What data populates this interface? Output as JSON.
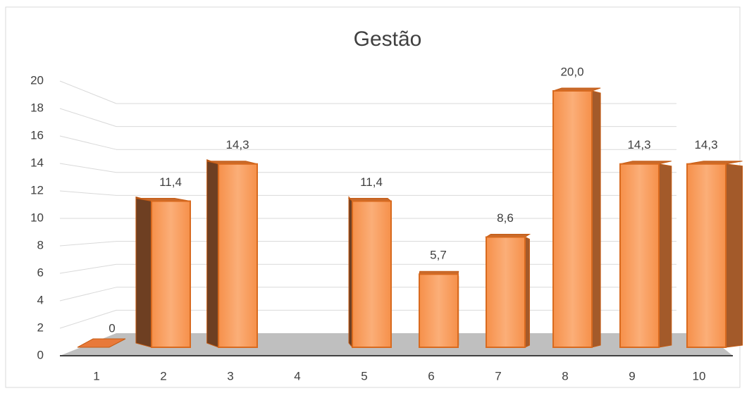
{
  "chart_data": {
    "type": "bar",
    "title": "Gestão",
    "categories": [
      "1",
      "2",
      "3",
      "4",
      "5",
      "6",
      "7",
      "8",
      "9",
      "10"
    ],
    "values": [
      0,
      11.4,
      14.3,
      null,
      11.4,
      5.7,
      8.6,
      20.0,
      14.3,
      14.3
    ],
    "value_labels": [
      "0",
      "11,4",
      "14,3",
      null,
      "11,4",
      "5,7",
      "8,6",
      "20,0",
      "14,3",
      "14,3"
    ],
    "color": "#f79646",
    "ylim": [
      0,
      20
    ],
    "yticks": [
      0,
      2,
      4,
      6,
      8,
      10,
      12,
      14,
      16,
      18,
      20
    ],
    "grid": true
  }
}
